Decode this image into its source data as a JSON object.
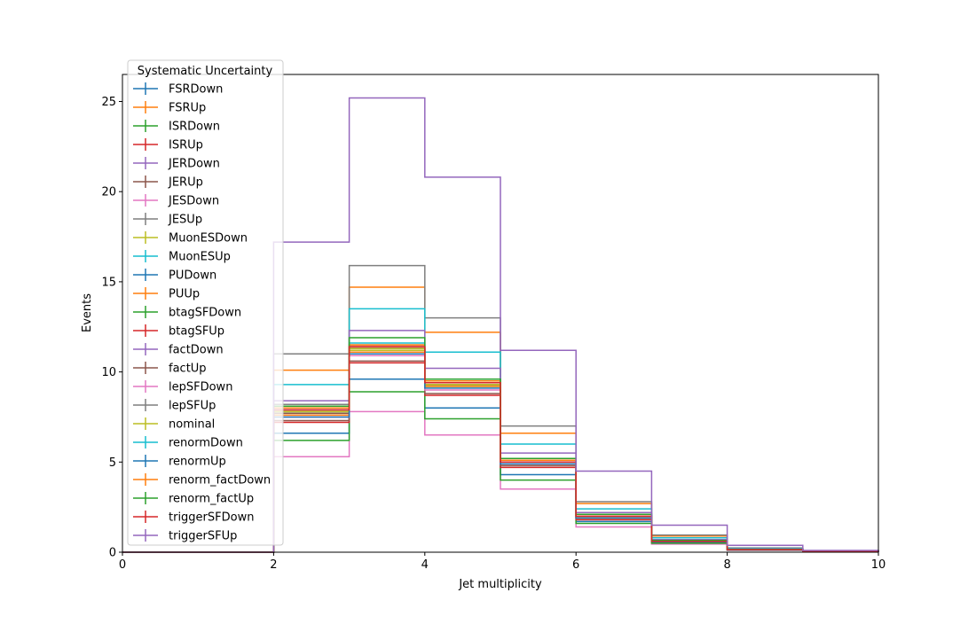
{
  "chart_data": {
    "type": "line",
    "title": "",
    "xlabel": "Jet multiplicity",
    "ylabel": "Events",
    "xlim": [
      0,
      10
    ],
    "ylim": [
      0,
      26.5
    ],
    "xticks": [
      0,
      2,
      4,
      6,
      8,
      10
    ],
    "yticks": [
      0,
      5,
      10,
      15,
      20,
      25
    ],
    "grid": false,
    "legend": {
      "title": "Systematic Uncertainty",
      "placement": "upper-left"
    },
    "bin_edges": [
      0,
      1,
      2,
      3,
      4,
      5,
      6,
      7,
      8,
      9,
      10
    ],
    "series": [
      {
        "name": "FSRDown",
        "color": "#1f77b4",
        "values": [
          0,
          0,
          7.8,
          11.3,
          9.3,
          5.0,
          1.9,
          0.6,
          0.15,
          0.05
        ]
      },
      {
        "name": "FSRUp",
        "color": "#ff7f0e",
        "values": [
          0,
          0,
          10.1,
          14.7,
          12.2,
          6.6,
          2.7,
          0.9,
          0.22,
          0.06
        ]
      },
      {
        "name": "ISRDown",
        "color": "#2ca02c",
        "values": [
          0,
          0,
          7.8,
          11.2,
          9.2,
          5.0,
          1.9,
          0.6,
          0.15,
          0.05
        ]
      },
      {
        "name": "ISRUp",
        "color": "#d62728",
        "values": [
          0,
          0,
          7.9,
          11.4,
          9.3,
          5.0,
          2.0,
          0.6,
          0.15,
          0.05
        ]
      },
      {
        "name": "JERDown",
        "color": "#9467bd",
        "values": [
          0,
          0,
          7.9,
          11.3,
          9.4,
          5.1,
          2.0,
          0.6,
          0.15,
          0.05
        ]
      },
      {
        "name": "JERUp",
        "color": "#8c564b",
        "values": [
          0,
          0,
          7.7,
          11.3,
          9.3,
          5.0,
          1.9,
          0.6,
          0.15,
          0.05
        ]
      },
      {
        "name": "JESDown",
        "color": "#e377c2",
        "values": [
          0,
          0,
          5.3,
          7.8,
          6.5,
          3.5,
          1.4,
          0.45,
          0.1,
          0.04
        ]
      },
      {
        "name": "JESUp",
        "color": "#7f7f7f",
        "values": [
          0,
          0,
          11.0,
          15.9,
          13.0,
          7.0,
          2.8,
          0.95,
          0.24,
          0.07
        ]
      },
      {
        "name": "MuonESDown",
        "color": "#bcbd22",
        "values": [
          0,
          0,
          7.8,
          11.2,
          9.3,
          5.0,
          1.9,
          0.6,
          0.15,
          0.05
        ]
      },
      {
        "name": "MuonESUp",
        "color": "#17becf",
        "values": [
          0,
          0,
          9.3,
          13.5,
          11.1,
          6.0,
          2.4,
          0.8,
          0.2,
          0.06
        ]
      },
      {
        "name": "PUDown",
        "color": "#1f77b4",
        "values": [
          0,
          0,
          6.6,
          9.6,
          8.0,
          4.3,
          1.7,
          0.55,
          0.13,
          0.04
        ]
      },
      {
        "name": "PUUp",
        "color": "#ff7f0e",
        "values": [
          0,
          0,
          7.6,
          11.1,
          9.2,
          4.9,
          1.9,
          0.6,
          0.15,
          0.05
        ]
      },
      {
        "name": "btagSFDown",
        "color": "#2ca02c",
        "values": [
          0,
          0,
          6.2,
          8.9,
          7.4,
          4.0,
          1.6,
          0.5,
          0.12,
          0.04
        ]
      },
      {
        "name": "btagSFUp",
        "color": "#d62728",
        "values": [
          0,
          0,
          7.2,
          10.5,
          8.7,
          4.7,
          1.8,
          0.6,
          0.14,
          0.05
        ]
      },
      {
        "name": "factDown",
        "color": "#9467bd",
        "values": [
          0,
          0,
          8.4,
          12.3,
          10.2,
          5.5,
          2.2,
          0.7,
          0.17,
          0.05
        ]
      },
      {
        "name": "factUp",
        "color": "#8c564b",
        "values": [
          0,
          0,
          7.3,
          10.6,
          8.8,
          4.8,
          1.9,
          0.6,
          0.14,
          0.05
        ]
      },
      {
        "name": "lepSFDown",
        "color": "#e377c2",
        "values": [
          0,
          0,
          7.5,
          10.9,
          9.0,
          4.9,
          1.9,
          0.6,
          0.14,
          0.05
        ]
      },
      {
        "name": "lepSFUp",
        "color": "#7f7f7f",
        "values": [
          0,
          0,
          8.2,
          11.5,
          9.6,
          5.2,
          2.1,
          0.65,
          0.16,
          0.05
        ]
      },
      {
        "name": "nominal",
        "color": "#bcbd22",
        "values": [
          0,
          0,
          7.8,
          11.3,
          9.3,
          5.0,
          1.9,
          0.6,
          0.15,
          0.05
        ]
      },
      {
        "name": "renormDown",
        "color": "#17becf",
        "values": [
          0,
          0,
          8.1,
          11.6,
          9.6,
          5.2,
          2.1,
          0.65,
          0.16,
          0.05
        ]
      },
      {
        "name": "renormUp",
        "color": "#1f77b4",
        "values": [
          0,
          0,
          7.5,
          11.0,
          9.1,
          4.9,
          1.9,
          0.6,
          0.14,
          0.05
        ]
      },
      {
        "name": "renorm_factDown",
        "color": "#ff7f0e",
        "values": [
          0,
          0,
          8.0,
          11.5,
          9.5,
          5.1,
          2.0,
          0.65,
          0.16,
          0.05
        ]
      },
      {
        "name": "renorm_factUp",
        "color": "#2ca02c",
        "values": [
          0,
          0,
          8.1,
          11.9,
          9.6,
          5.2,
          2.1,
          0.65,
          0.16,
          0.05
        ]
      },
      {
        "name": "triggerSFDown",
        "color": "#d62728",
        "values": [
          0,
          0,
          7.9,
          11.4,
          9.4,
          5.0,
          2.0,
          0.6,
          0.15,
          0.05
        ]
      },
      {
        "name": "triggerSFUp",
        "color": "#9467bd",
        "values": [
          0,
          0,
          17.2,
          25.2,
          20.8,
          11.2,
          4.5,
          1.5,
          0.38,
          0.1
        ]
      }
    ]
  }
}
